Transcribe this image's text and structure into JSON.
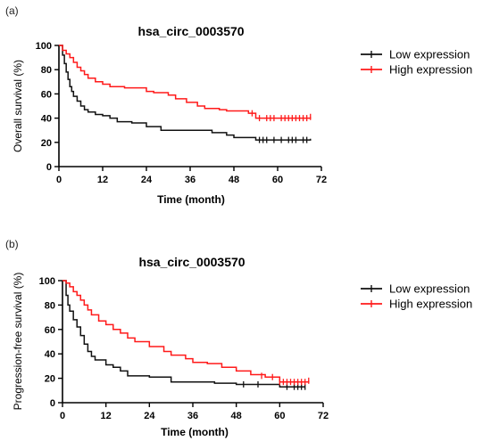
{
  "chart_data": [
    {
      "type": "line",
      "panel_label": "(a)",
      "title": "hsa_circ_0003570",
      "xlabel": "Time (month)",
      "ylabel": "Overall survival (%)",
      "xlim": [
        0,
        72
      ],
      "ylim": [
        0,
        100
      ],
      "xticks": [
        0,
        12,
        24,
        36,
        48,
        60,
        72
      ],
      "yticks": [
        0,
        20,
        40,
        60,
        80,
        100
      ],
      "legend_position": "right",
      "series": [
        {
          "name": "Low expression",
          "color": "#111111",
          "x": [
            0,
            1,
            1.5,
            2,
            2.5,
            3,
            3.5,
            4,
            5,
            6,
            7,
            8,
            10,
            12,
            14,
            16,
            20,
            24,
            28,
            36,
            42,
            46,
            48,
            54,
            60,
            66,
            69
          ],
          "y": [
            100,
            92,
            85,
            78,
            72,
            66,
            62,
            58,
            54,
            50,
            47,
            45,
            43,
            42,
            40,
            37,
            36,
            33,
            30,
            30,
            28,
            26,
            24,
            22,
            22,
            22,
            23
          ],
          "censor_x": [
            55,
            56,
            57,
            59,
            61,
            63,
            64,
            65,
            67,
            68
          ],
          "censor_y": [
            22,
            22,
            22,
            22,
            22,
            22,
            22,
            22,
            22,
            22
          ]
        },
        {
          "name": "High expression",
          "color": "#ff1a1a",
          "x": [
            0,
            1,
            2,
            3,
            4,
            5,
            6,
            7,
            8,
            10,
            12,
            14,
            18,
            22,
            24,
            26,
            30,
            32,
            35,
            38,
            40,
            44,
            46,
            52,
            54,
            60,
            69
          ],
          "y": [
            100,
            96,
            93,
            90,
            86,
            82,
            79,
            76,
            73,
            70,
            68,
            66,
            65,
            65,
            62,
            61,
            59,
            56,
            53,
            50,
            48,
            47,
            46,
            44,
            40,
            40,
            41
          ],
          "censor_x": [
            53,
            55,
            57,
            58,
            59,
            61,
            62,
            63,
            64,
            65,
            66,
            67,
            68,
            69
          ],
          "censor_y": [
            44,
            40,
            40,
            40,
            40,
            40,
            40,
            40,
            40,
            40,
            40,
            40,
            40,
            41
          ]
        }
      ]
    },
    {
      "type": "line",
      "panel_label": "(b)",
      "title": "hsa_circ_0003570",
      "xlabel": "Time (month)",
      "ylabel": "Progression-free survival (%)",
      "xlim": [
        0,
        72
      ],
      "ylim": [
        0,
        100
      ],
      "xticks": [
        0,
        12,
        24,
        36,
        48,
        60,
        72
      ],
      "yticks": [
        0,
        20,
        40,
        60,
        80,
        100
      ],
      "legend_position": "right",
      "series": [
        {
          "name": "Low expression",
          "color": "#111111",
          "x": [
            0,
            1,
            1.5,
            2,
            3,
            4,
            5,
            6,
            7,
            8,
            9,
            12,
            14,
            16,
            18,
            24,
            30,
            36,
            42,
            48,
            54,
            60,
            67
          ],
          "y": [
            100,
            88,
            80,
            75,
            68,
            62,
            55,
            48,
            42,
            38,
            35,
            31,
            29,
            26,
            22,
            21,
            17,
            17,
            16,
            15,
            15,
            13,
            13
          ],
          "censor_x": [
            50,
            54,
            62,
            64,
            65,
            66,
            67
          ],
          "censor_y": [
            15,
            15,
            13,
            13,
            13,
            13,
            13
          ]
        },
        {
          "name": "High expression",
          "color": "#ff1a1a",
          "x": [
            0,
            1,
            2,
            3,
            4,
            5,
            6,
            7,
            8,
            10,
            12,
            14,
            16,
            18,
            20,
            24,
            28,
            30,
            34,
            36,
            40,
            44,
            48,
            52,
            56,
            60,
            68
          ],
          "y": [
            100,
            98,
            95,
            91,
            88,
            84,
            80,
            76,
            72,
            67,
            64,
            60,
            57,
            53,
            50,
            46,
            42,
            39,
            36,
            33,
            32,
            29,
            26,
            23,
            21,
            17,
            18
          ],
          "censor_x": [
            55,
            58,
            60,
            61,
            62,
            63,
            64,
            65,
            66,
            67,
            68
          ],
          "censor_y": [
            22,
            21,
            17,
            17,
            17,
            17,
            17,
            17,
            17,
            17,
            18
          ]
        }
      ]
    }
  ]
}
